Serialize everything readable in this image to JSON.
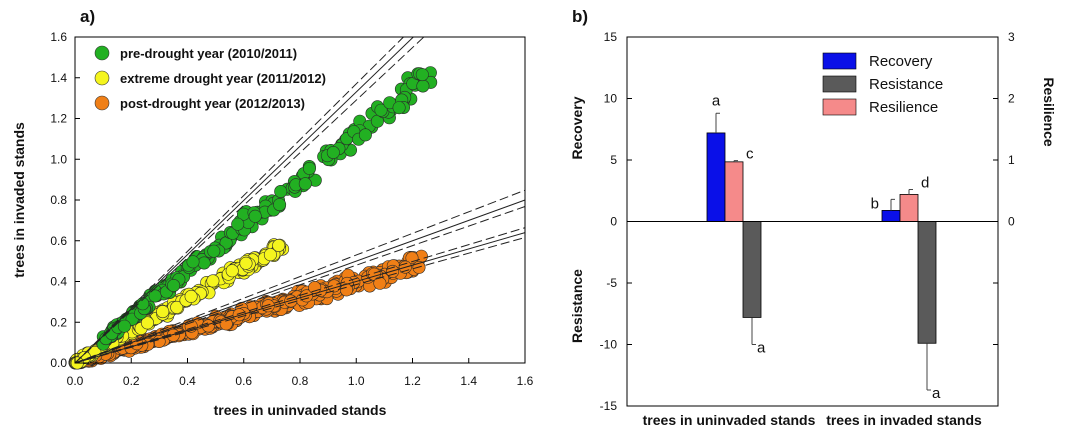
{
  "chart_data": [
    {
      "type": "scatter",
      "panel_label": "a)",
      "xlabel": "trees in uninvaded stands",
      "ylabel": "trees in invaded stands",
      "xlim": [
        0,
        1.6
      ],
      "ylim": [
        0,
        1.6
      ],
      "x_ticks": [
        "0.0",
        "0.2",
        "0.4",
        "0.6",
        "0.8",
        "1.0",
        "1.2",
        "1.4",
        "1.6"
      ],
      "y_ticks": [
        "0.0",
        "0.2",
        "0.4",
        "0.6",
        "0.8",
        "1.0",
        "1.2",
        "1.4",
        "1.6"
      ],
      "legend_position": "top-left",
      "series": [
        {
          "name": "pre-drought year (2010/2011)",
          "color": "#22b022",
          "relation_slope": 1.12,
          "x_range": [
            0.1,
            1.27
          ],
          "spread": 0.07
        },
        {
          "name": "extreme drought year (2011/2012)",
          "color": "#f5f51e",
          "relation_slope": 0.78,
          "x_range": [
            0.0,
            0.75
          ],
          "spread": 0.05
        },
        {
          "name": "post-drought year (2012/2013)",
          "color": "#f07f16",
          "relation_slope": 0.4,
          "x_range": [
            0.0,
            1.24
          ],
          "spread": 0.04
        }
      ],
      "regression_lines": [
        {
          "slope": 1.33,
          "ci_low_slope": 1.29,
          "ci_high_slope": 1.37
        },
        {
          "slope": 0.5,
          "ci_low_slope": 0.48,
          "ci_high_slope": 0.53
        },
        {
          "slope": 0.4,
          "ci_low_slope": 0.385,
          "ci_high_slope": 0.415
        }
      ]
    },
    {
      "type": "bar",
      "panel_label": "b)",
      "categories": [
        "trees in uninvaded stands",
        "trees in invaded stands"
      ],
      "ylabel_left_upper": "Recovery",
      "ylabel_left_lower": "Resistance",
      "ylabel_right": "Resilience",
      "ylim_left": [
        -15,
        15
      ],
      "ylim_right": [
        -3,
        3
      ],
      "y_ticks_left": [
        "-15",
        "-10",
        "-5",
        "0",
        "5",
        "10",
        "15"
      ],
      "y_ticks_right": [
        "0",
        "1",
        "2",
        "3"
      ],
      "legend_position": "top-right",
      "series": [
        {
          "name": "Recovery",
          "color": "#0a10e8",
          "values": [
            7.2,
            0.9
          ],
          "errors": [
            1.6,
            0.9
          ],
          "labels": [
            "a",
            "b"
          ]
        },
        {
          "name": "Resistance",
          "color": "#5a5a5a",
          "values": [
            -7.8,
            -9.9
          ],
          "errors": [
            2.2,
            3.8
          ],
          "labels": [
            "a",
            "a"
          ]
        },
        {
          "name": "Resilience",
          "color": "#f58a8a",
          "values": [
            0.97,
            0.44
          ],
          "errors": [
            0.02,
            0.08
          ],
          "labels": [
            "c",
            "d"
          ],
          "axis": "right"
        }
      ]
    }
  ]
}
